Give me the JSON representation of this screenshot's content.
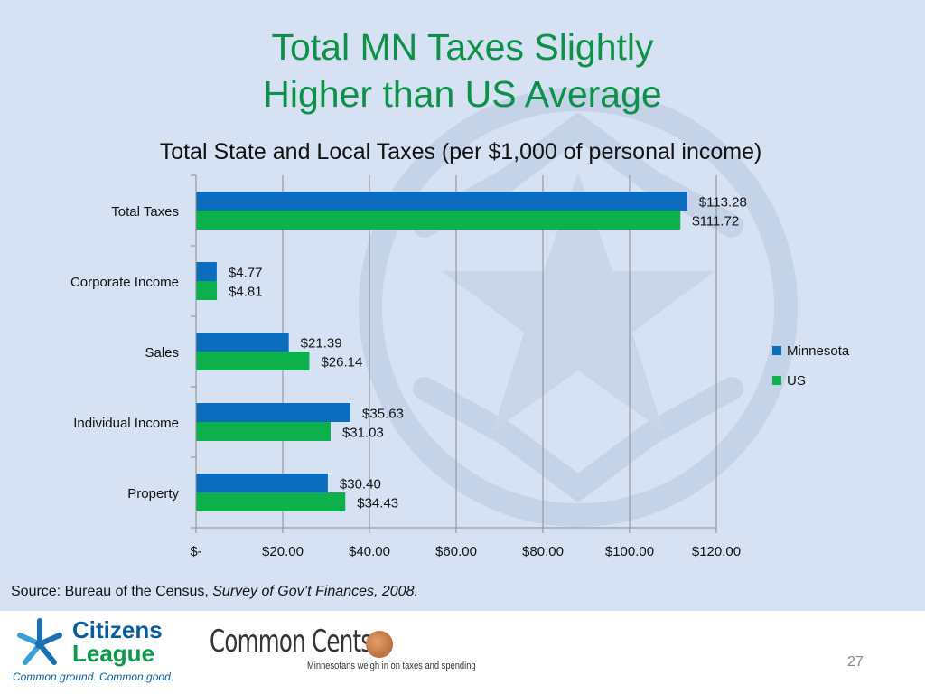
{
  "slide": {
    "title_line1": "Total MN Taxes Slightly",
    "title_line2": "Higher than US Average",
    "source_prefix": "Source: Bureau of the Census, ",
    "source_italic": "Survey of Gov’t Finances, 2008.",
    "page_number": "27"
  },
  "footer": {
    "citizens_league_line1": "Citizens",
    "citizens_league_line2": "League",
    "citizens_league_tagline": "Common ground. Common good.",
    "common_cents_name": "Common Cents",
    "common_cents_tagline": "Minnesotans weigh in on taxes and spending"
  },
  "colors": {
    "title": "#0c9148",
    "minnesota": "#0c6dbf",
    "us": "#0db14b",
    "background": "#d6e2f3"
  },
  "chart_data": {
    "type": "bar",
    "orientation": "horizontal",
    "title": "Total State and Local Taxes (per $1,000 of personal income)",
    "categories": [
      "Total Taxes",
      "Corporate Income",
      "Sales",
      "Individual Income",
      "Property"
    ],
    "series": [
      {
        "name": "Minnesota",
        "color": "#0c6dbf",
        "values": [
          113.28,
          4.77,
          21.39,
          35.63,
          30.4
        ],
        "labels": [
          "$113.28",
          "$4.77",
          "$21.39",
          "$35.63",
          "$30.40"
        ]
      },
      {
        "name": "US",
        "color": "#0db14b",
        "values": [
          111.72,
          4.81,
          26.14,
          31.03,
          34.43
        ],
        "labels": [
          "$111.72",
          "$4.81",
          "$26.14",
          "$31.03",
          "$34.43"
        ]
      }
    ],
    "xlim": [
      0,
      120
    ],
    "x_ticks": [
      0,
      20,
      40,
      60,
      80,
      100,
      120
    ],
    "x_tick_labels": [
      "$-",
      "$20.00",
      "$40.00",
      "$60.00",
      "$80.00",
      "$100.00",
      "$120.00"
    ],
    "grid": true,
    "legend_position": "right"
  }
}
